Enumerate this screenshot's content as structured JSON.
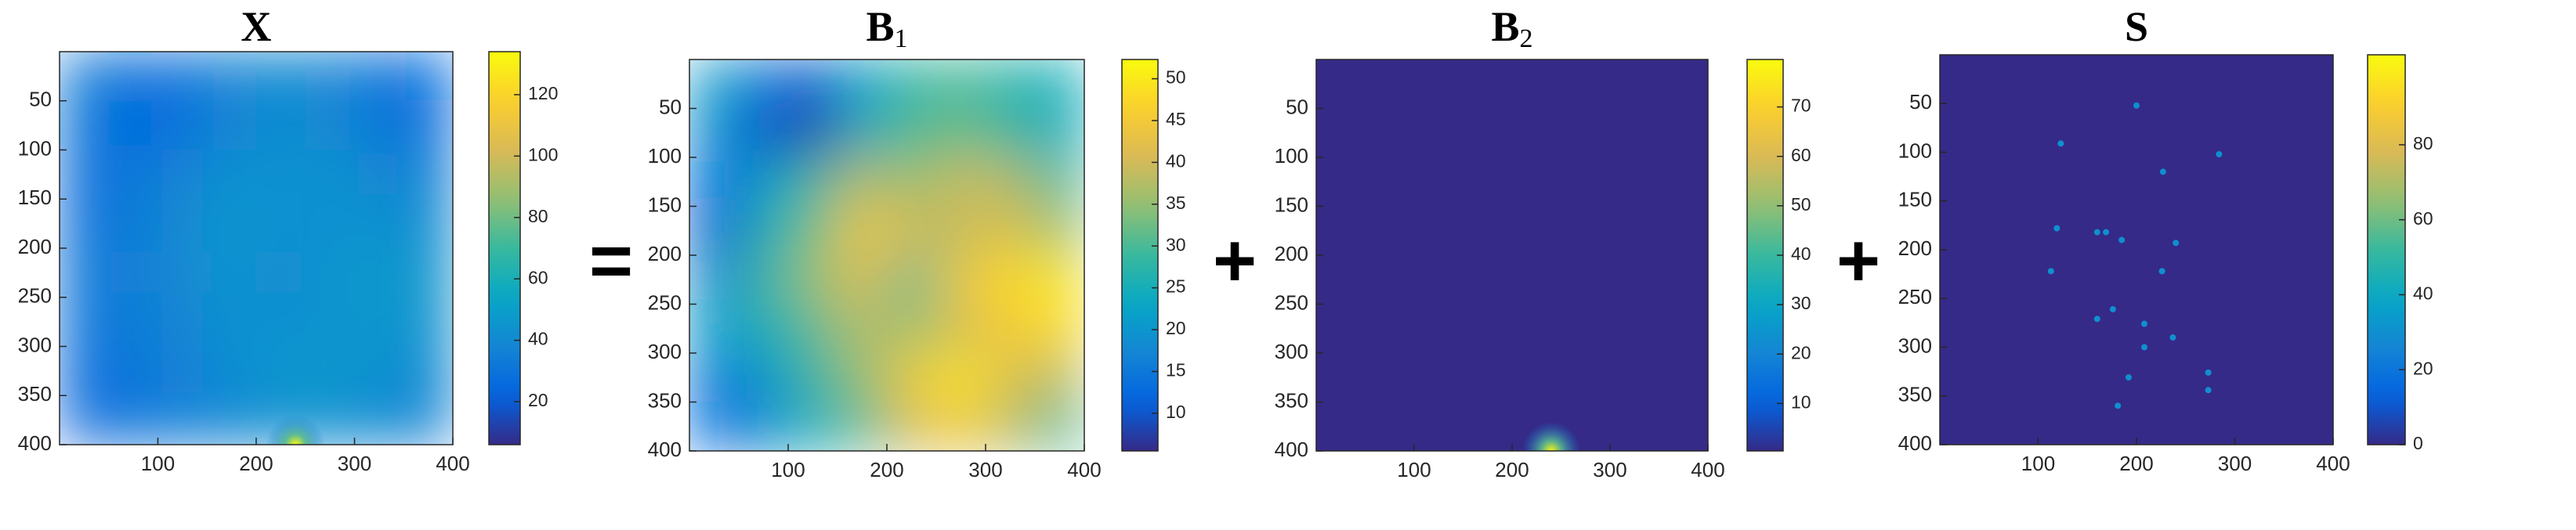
{
  "chart_data": [
    {
      "type": "image",
      "title": "X",
      "colormap": "parula",
      "xlim": [
        0,
        400
      ],
      "ylim": [
        0,
        400
      ],
      "y_reversed": true,
      "xticks": [
        100,
        200,
        300,
        400
      ],
      "yticks": [
        50,
        100,
        150,
        200,
        250,
        300,
        350,
        400
      ],
      "clim": [
        6,
        134
      ],
      "cticks": [
        20,
        40,
        60,
        80,
        100,
        120
      ],
      "grid_x": [
        25,
        75,
        125,
        175,
        225,
        275,
        325,
        375
      ],
      "grid_y": [
        25,
        75,
        125,
        175,
        225,
        275,
        325,
        375
      ],
      "grid": [
        [
          35,
          28,
          30,
          38,
          40,
          38,
          30,
          25
        ],
        [
          33,
          25,
          28,
          38,
          42,
          40,
          32,
          28
        ],
        [
          28,
          32,
          38,
          44,
          42,
          45,
          40,
          35
        ],
        [
          28,
          34,
          40,
          46,
          44,
          42,
          44,
          40
        ],
        [
          32,
          36,
          40,
          45,
          40,
          46,
          48,
          45
        ],
        [
          30,
          34,
          38,
          44,
          42,
          44,
          46,
          44
        ],
        [
          28,
          32,
          36,
          42,
          46,
          48,
          44,
          40
        ],
        [
          26,
          30,
          34,
          38,
          44,
          42,
          40,
          36
        ]
      ],
      "peak": {
        "x": 240,
        "y": 400,
        "value": 133,
        "width": 30
      }
    },
    {
      "type": "image",
      "title": "B",
      "title_sub": "1",
      "operator": "=",
      "colormap": "parula",
      "xlim": [
        0,
        400
      ],
      "ylim": [
        0,
        400
      ],
      "y_reversed": true,
      "xticks": [
        100,
        200,
        300,
        400
      ],
      "yticks": [
        50,
        100,
        150,
        200,
        250,
        300,
        350,
        400
      ],
      "clim": [
        5.5,
        52.3
      ],
      "cticks": [
        10,
        15,
        20,
        25,
        30,
        35,
        40,
        45,
        50
      ],
      "grid_x": [
        25,
        75,
        125,
        175,
        225,
        275,
        325,
        375
      ],
      "grid_y": [
        25,
        75,
        125,
        175,
        225,
        275,
        325,
        375
      ],
      "grid": [
        [
          22,
          15,
          10,
          22,
          28,
          30,
          27,
          25
        ],
        [
          20,
          10,
          8,
          24,
          30,
          32,
          28,
          24
        ],
        [
          12,
          22,
          28,
          38,
          35,
          40,
          38,
          30
        ],
        [
          10,
          25,
          32,
          45,
          40,
          38,
          42,
          35
        ],
        [
          18,
          28,
          35,
          42,
          30,
          45,
          48,
          50
        ],
        [
          22,
          25,
          30,
          38,
          35,
          40,
          45,
          48
        ],
        [
          15,
          20,
          28,
          35,
          45,
          50,
          42,
          38
        ],
        [
          12,
          18,
          25,
          30,
          40,
          45,
          38,
          30
        ]
      ]
    },
    {
      "type": "image",
      "title": "B",
      "title_sub": "2",
      "operator": "+",
      "colormap": "parula",
      "xlim": [
        0,
        400
      ],
      "ylim": [
        0,
        400
      ],
      "y_reversed": true,
      "xticks": [
        100,
        200,
        300,
        400
      ],
      "yticks": [
        50,
        100,
        150,
        200,
        250,
        300,
        350,
        400
      ],
      "clim": [
        0.4,
        79.6
      ],
      "cticks": [
        10,
        20,
        30,
        40,
        50,
        60,
        70
      ],
      "background": 0.4,
      "peak": {
        "x": 240,
        "y": 400,
        "value": 79,
        "width": 30
      }
    },
    {
      "type": "image",
      "title": "S",
      "operator": "+",
      "colormap": "parula",
      "xlim": [
        0,
        400
      ],
      "ylim": [
        0,
        400
      ],
      "y_reversed": true,
      "xticks": [
        100,
        200,
        300,
        400
      ],
      "yticks": [
        50,
        100,
        150,
        200,
        250,
        300,
        350,
        400
      ],
      "clim": [
        0,
        104
      ],
      "cticks": [
        0,
        20,
        40,
        60,
        80
      ],
      "background": 0,
      "points": {
        "x": [
          200,
          123,
          227,
          284,
          119,
          160,
          169,
          185,
          240,
          113,
          226,
          176,
          160,
          208,
          237,
          208,
          192,
          273,
          273,
          181
        ],
        "y": [
          52,
          91,
          120,
          102,
          178,
          182,
          182,
          190,
          193,
          222,
          222,
          261,
          271,
          276,
          290,
          300,
          331,
          326,
          344,
          360
        ],
        "values": [
          30,
          30,
          30,
          30,
          30,
          30,
          30,
          30,
          30,
          30,
          30,
          30,
          30,
          30,
          30,
          30,
          30,
          30,
          30,
          30
        ]
      }
    }
  ]
}
